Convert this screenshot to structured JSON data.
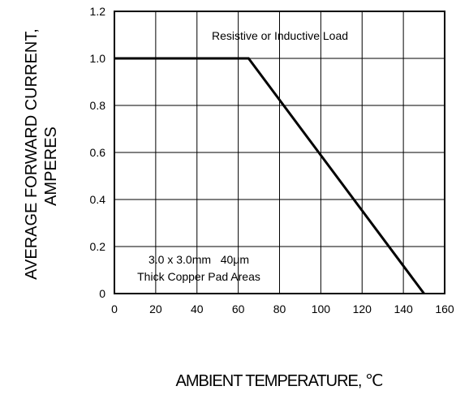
{
  "chart_data": {
    "type": "line",
    "ylabel_line1": "AVERAGE FORWARD CURRENT,",
    "ylabel_line2": "AMPERES",
    "xlabel": "AMBIENT TEMPERATURE, ℃",
    "xlim": [
      0,
      160
    ],
    "ylim": [
      0,
      1.2
    ],
    "x_ticks": [
      "0",
      "20",
      "40",
      "60",
      "80",
      "100",
      "120",
      "140",
      "160"
    ],
    "y_ticks": [
      "0",
      "0.2",
      "0.4",
      "0.6",
      "0.8",
      "1.0",
      "1.2"
    ],
    "x_tick_values": [
      0,
      20,
      40,
      60,
      80,
      100,
      120,
      140,
      160
    ],
    "y_tick_values": [
      0,
      0.2,
      0.4,
      0.6,
      0.8,
      1.0,
      1.2
    ],
    "grid": true,
    "series": [
      {
        "x": [
          0,
          65,
          150
        ],
        "y": [
          1.0,
          1.0,
          0.0
        ]
      }
    ],
    "annotations": {
      "top": "Resistive or Inductive Load",
      "bottom_line1": "3.0 x 3.0mm   40μm",
      "bottom_line2": "Thick Copper Pad Areas"
    },
    "colors": {
      "line": "#000000",
      "grid": "#000000",
      "background": "#ffffff"
    }
  }
}
